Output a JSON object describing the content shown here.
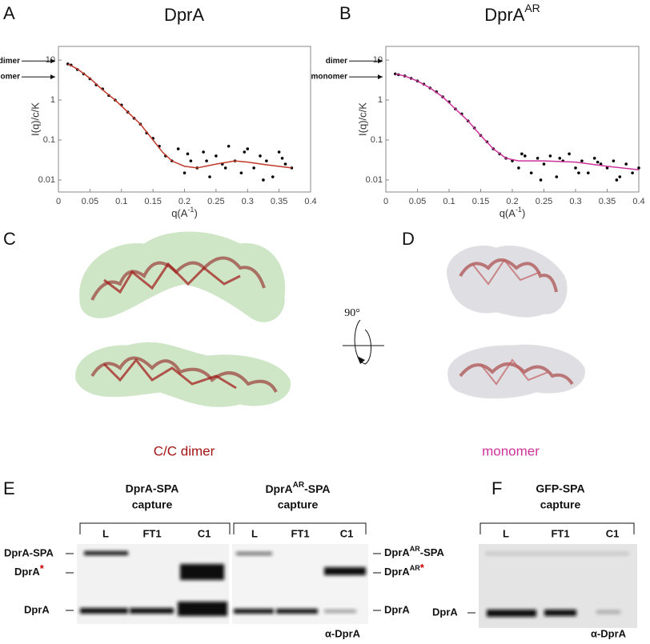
{
  "panels": [
    "A",
    "B",
    "C",
    "D",
    "E",
    "F"
  ],
  "chart_data": [
    {
      "type": "scatter",
      "title": "DprA",
      "xlabel": "q(A",
      "xlabel_sup": "-1",
      "xlabel_end": ")",
      "ylabel": "I(q)/c/K",
      "xlim": [
        0,
        0.4
      ],
      "ylim": [
        0.005,
        22
      ],
      "log_y": true,
      "xticks": [
        0,
        0.05,
        0.1,
        0.15,
        0.2,
        0.25,
        0.3,
        0.35,
        0.4
      ],
      "yticks": [
        0.01,
        0.1,
        1,
        10
      ],
      "markers": [
        {
          "label": "dimer",
          "value": 9.5
        },
        {
          "label": "monomer",
          "value": 3.8
        }
      ],
      "points": {
        "color": "#000000",
        "x": [
          0.015,
          0.02,
          0.03,
          0.04,
          0.05,
          0.06,
          0.07,
          0.08,
          0.09,
          0.1,
          0.11,
          0.12,
          0.13,
          0.14,
          0.15,
          0.16,
          0.17,
          0.18,
          0.19,
          0.2,
          0.21,
          0.22,
          0.23,
          0.24,
          0.25,
          0.26,
          0.27,
          0.28,
          0.29,
          0.3,
          0.31,
          0.32,
          0.33,
          0.34,
          0.35,
          0.36,
          0.37,
          0.205,
          0.235,
          0.265,
          0.295,
          0.325,
          0.355
        ],
        "values": [
          8,
          7.5,
          5.8,
          4.5,
          3.4,
          2.4,
          1.9,
          1.3,
          1,
          0.75,
          0.5,
          0.35,
          0.25,
          0.15,
          0.11,
          0.07,
          0.04,
          0.03,
          0.06,
          0.015,
          0.03,
          0.02,
          0.05,
          0.012,
          0.04,
          0.025,
          0.07,
          0.03,
          0.015,
          0.06,
          0.02,
          0.04,
          0.03,
          0.012,
          0.05,
          0.025,
          0.02,
          0.045,
          0.03,
          0.02,
          0.05,
          0.01,
          0.035
        ]
      },
      "fit": {
        "color": "#c0392b",
        "x": [
          0.015,
          0.03,
          0.05,
          0.07,
          0.09,
          0.11,
          0.13,
          0.15,
          0.165,
          0.18,
          0.2,
          0.22,
          0.25,
          0.28,
          0.3,
          0.33,
          0.37
        ],
        "values": [
          8,
          6,
          3.5,
          1.8,
          1,
          0.5,
          0.25,
          0.1,
          0.05,
          0.03,
          0.022,
          0.02,
          0.025,
          0.03,
          0.028,
          0.024,
          0.02
        ]
      }
    },
    {
      "type": "scatter",
      "title": "DprA",
      "title_sup": "AR",
      "xlabel": "q(A",
      "xlabel_sup": "-1",
      "xlabel_end": ")",
      "ylabel": "I(q)/c/K",
      "xlim": [
        0,
        0.4
      ],
      "ylim": [
        0.005,
        22
      ],
      "log_y": true,
      "xticks": [
        0,
        0.05,
        0.1,
        0.15,
        0.2,
        0.25,
        0.3,
        0.35,
        0.4
      ],
      "yticks": [
        0.01,
        0.1,
        1,
        10
      ],
      "markers": [
        {
          "label": "dimer",
          "value": 9.5
        },
        {
          "label": "monomer",
          "value": 3.8
        }
      ],
      "points": {
        "color": "#000000",
        "x": [
          0.015,
          0.02,
          0.03,
          0.04,
          0.05,
          0.06,
          0.07,
          0.08,
          0.09,
          0.1,
          0.11,
          0.12,
          0.13,
          0.14,
          0.15,
          0.16,
          0.17,
          0.18,
          0.19,
          0.2,
          0.21,
          0.22,
          0.23,
          0.24,
          0.25,
          0.26,
          0.27,
          0.28,
          0.29,
          0.3,
          0.31,
          0.32,
          0.33,
          0.34,
          0.35,
          0.36,
          0.37,
          0.38,
          0.39,
          0.4,
          0.215,
          0.245,
          0.275,
          0.305,
          0.335,
          0.365
        ],
        "values": [
          4.5,
          4.3,
          4,
          3.5,
          3,
          2.5,
          2,
          1.6,
          1.2,
          0.9,
          0.6,
          0.45,
          0.3,
          0.2,
          0.13,
          0.09,
          0.06,
          0.045,
          0.035,
          0.03,
          0.02,
          0.04,
          0.015,
          0.035,
          0.025,
          0.04,
          0.012,
          0.03,
          0.045,
          0.02,
          0.03,
          0.015,
          0.035,
          0.025,
          0.02,
          0.03,
          0.012,
          0.025,
          0.015,
          0.02,
          0.045,
          0.01,
          0.035,
          0.015,
          0.028,
          0.01
        ]
      },
      "fit": {
        "color": "#cc3399",
        "x": [
          0.015,
          0.03,
          0.05,
          0.07,
          0.09,
          0.11,
          0.13,
          0.15,
          0.17,
          0.19,
          0.21,
          0.25,
          0.3,
          0.35,
          0.4
        ],
        "values": [
          4.5,
          4,
          3,
          2,
          1.2,
          0.6,
          0.3,
          0.13,
          0.06,
          0.035,
          0.03,
          0.03,
          0.028,
          0.022,
          0.018
        ]
      }
    }
  ],
  "structures": {
    "dimer_label": "C/C dimer",
    "monomer_label": "monomer",
    "rotation": "90°"
  },
  "gel_e": {
    "left_title": [
      "DprA-SPA",
      "capture"
    ],
    "right_title": {
      "base": "DprA",
      "sup": "AR",
      "rest": "-SPA",
      "line2": "capture"
    },
    "lanes": [
      "L",
      "FT1",
      "C1"
    ],
    "left_labels": {
      "spa": "DprA-SPA",
      "star_base": "DprA",
      "star": "*",
      "dpra": "DprA"
    },
    "right_labels": {
      "spa_base": "DprA",
      "spa_sup": "AR",
      "spa_rest": "-SPA",
      "star_base": "DprA",
      "star_sup": "AR",
      "star": "*",
      "dpra": "DprA"
    },
    "antibody": "α-DprA"
  },
  "gel_f": {
    "title": [
      "GFP-SPA",
      "capture"
    ],
    "lanes": [
      "L",
      "FT1",
      "C1"
    ],
    "label": "DprA",
    "antibody": "α-DprA"
  }
}
